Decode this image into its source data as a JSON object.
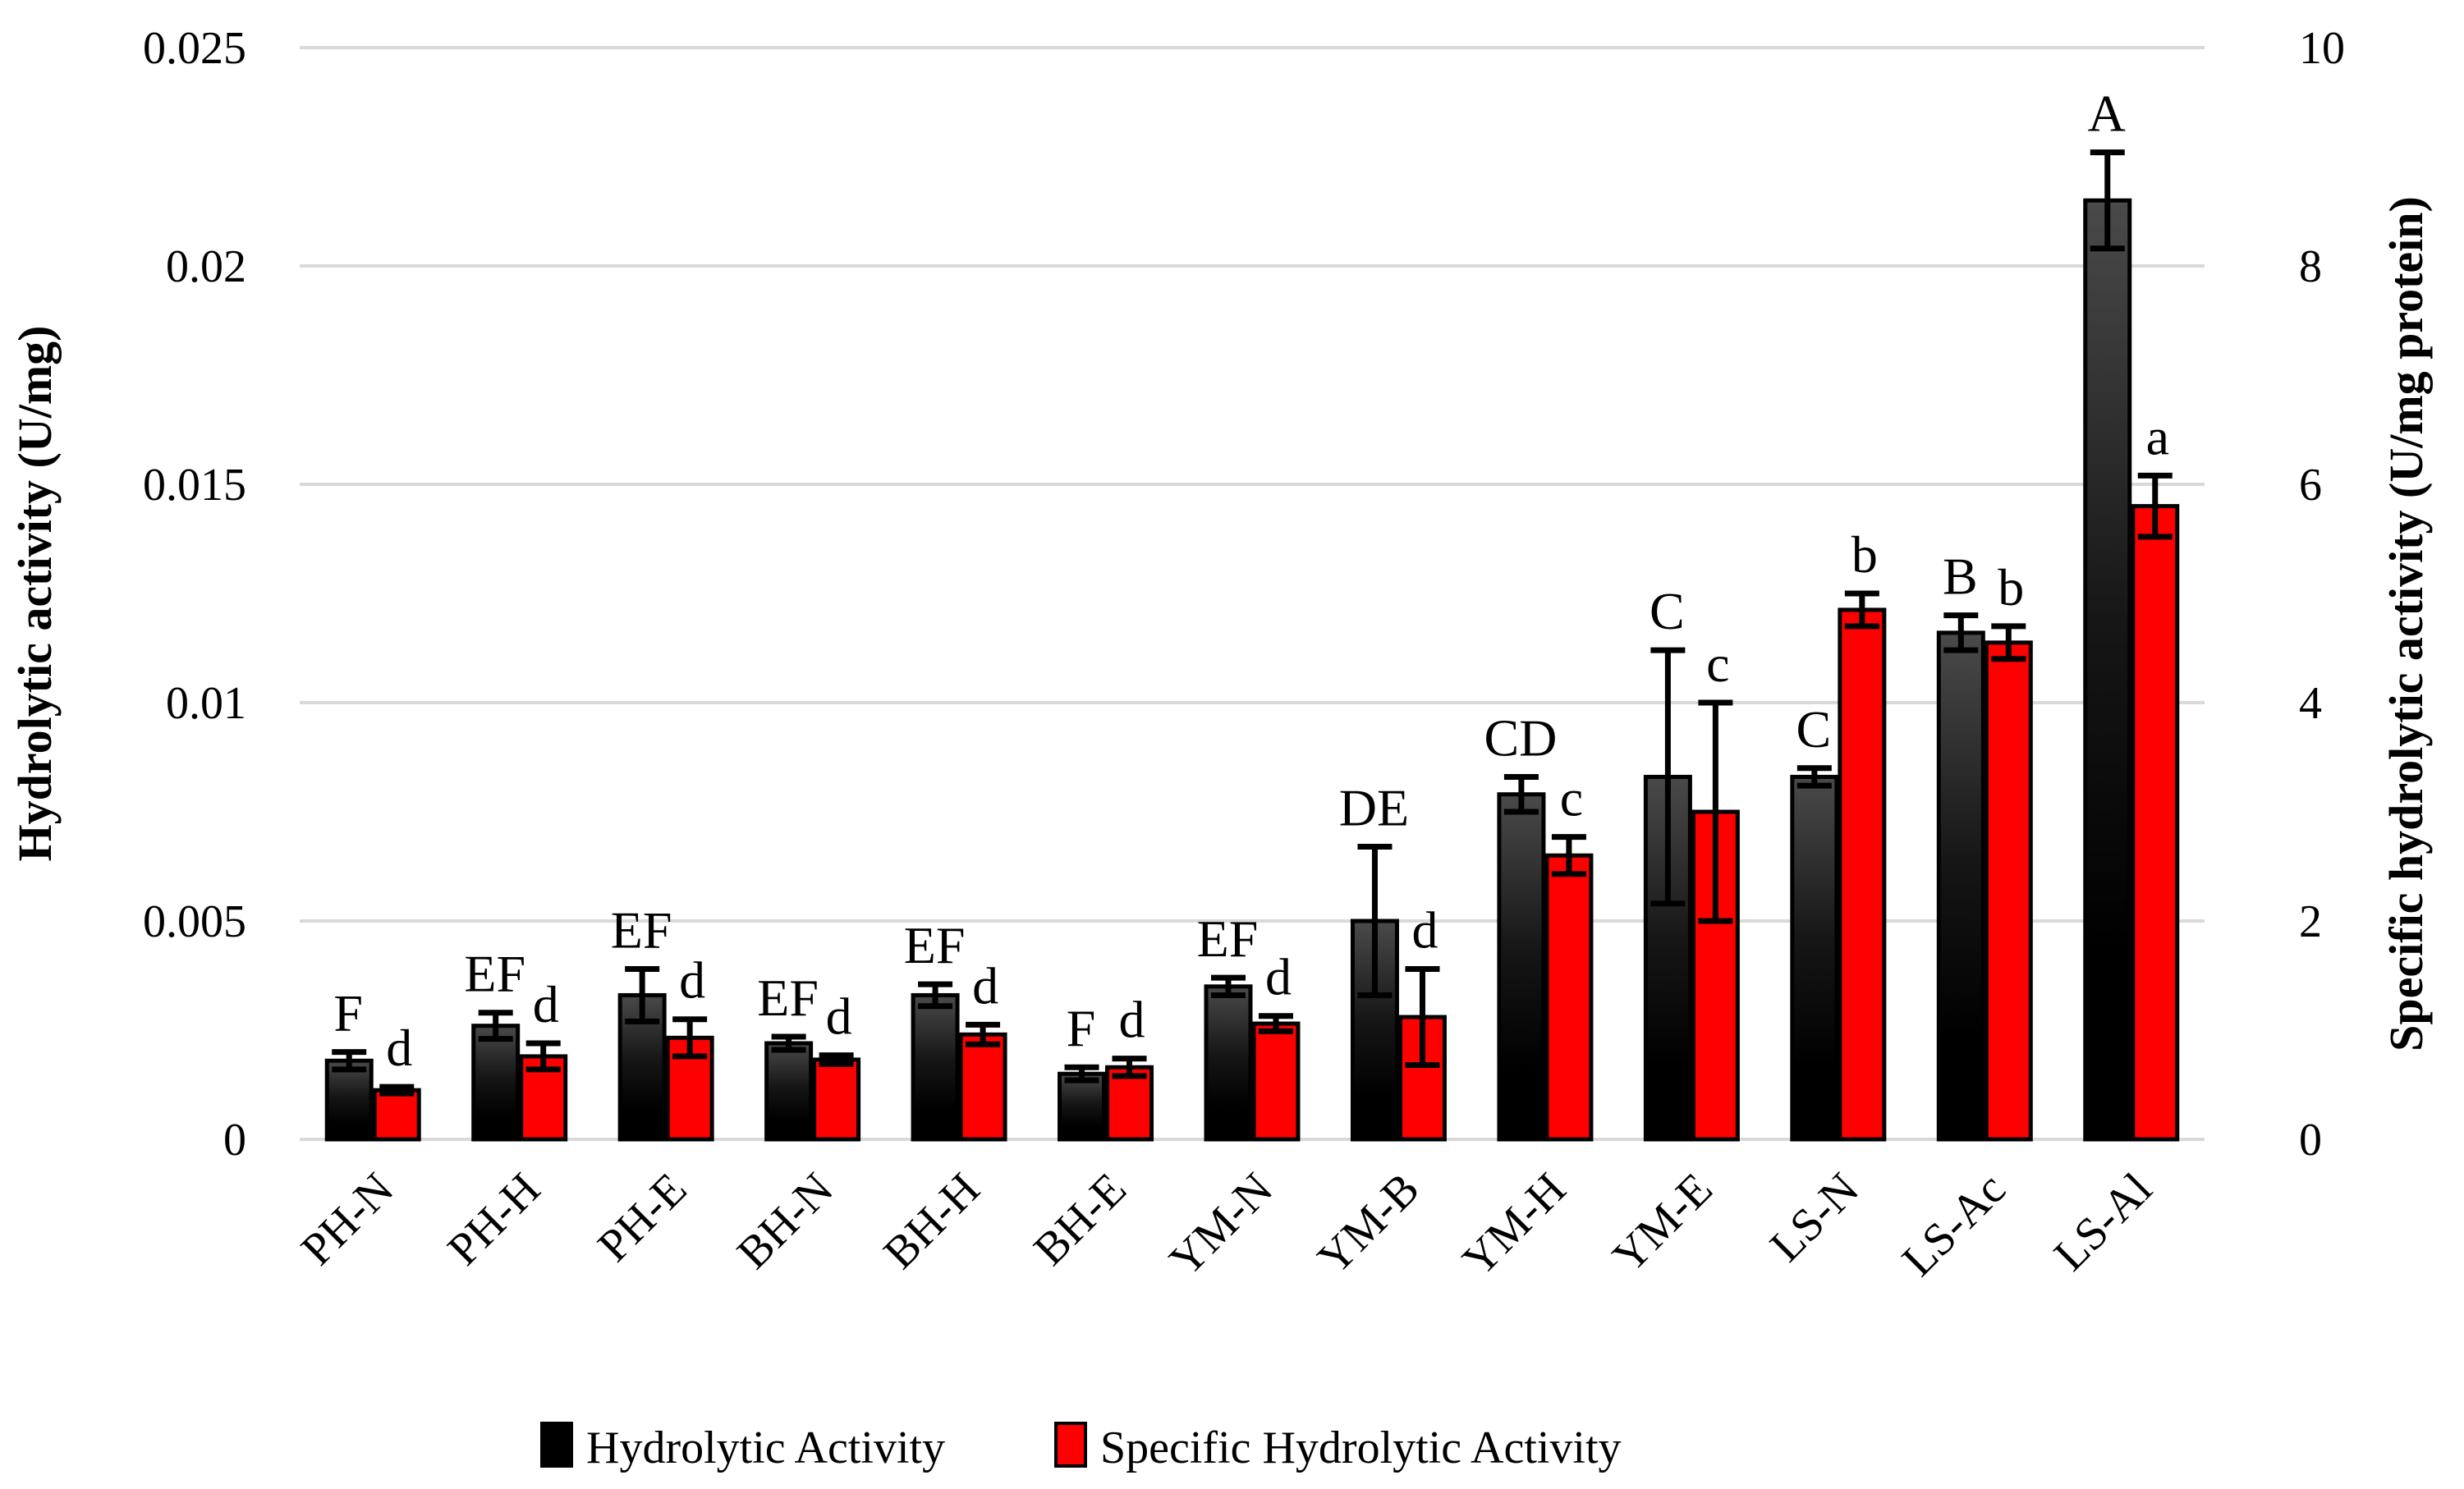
{
  "chart_data": {
    "type": "bar",
    "title": "",
    "categories": [
      "PH-N",
      "PH-H",
      "PH-E",
      "BH-N",
      "BH-H",
      "BH-E",
      "YM-N",
      "YM-B",
      "YM-H",
      "YM-E",
      "LS-N",
      "LS-Ac",
      "LS-Al"
    ],
    "series": [
      {
        "name": "Hydrolytic Activity",
        "axis": "left",
        "color": "#000000",
        "values": [
          0.0018,
          0.0026,
          0.0033,
          0.0022,
          0.0033,
          0.0015,
          0.0035,
          0.005,
          0.0079,
          0.0083,
          0.0083,
          0.0116,
          0.0215
        ],
        "errors": [
          0.0002,
          0.0003,
          0.0006,
          0.00015,
          0.00025,
          0.00015,
          0.0002,
          0.0017,
          0.0004,
          0.0029,
          0.0002,
          0.0004,
          0.0011
        ],
        "letters": [
          "F",
          "EF",
          "EF",
          "EF",
          "EF",
          "F",
          "EF",
          "DE",
          "CD",
          "C",
          "C",
          "B",
          "A"
        ]
      },
      {
        "name": "Specific Hydrolytic Activity",
        "axis": "right",
        "color": "#ff0000",
        "values": [
          0.45,
          0.76,
          0.93,
          0.73,
          0.96,
          0.66,
          1.06,
          1.12,
          2.6,
          3.0,
          4.85,
          4.55,
          5.8
        ],
        "errors": [
          0.03,
          0.12,
          0.17,
          0.04,
          0.09,
          0.08,
          0.07,
          0.44,
          0.17,
          1.0,
          0.15,
          0.15,
          0.28
        ],
        "letters": [
          "d",
          "d",
          "d",
          "d",
          "d",
          "d",
          "d",
          "d",
          "c",
          "c",
          "b",
          "b",
          "a"
        ]
      }
    ],
    "left_axis": {
      "label": "Hydrolytic activity (U/mg)",
      "min": 0,
      "max": 0.025,
      "ticks": [
        "0",
        "0.005",
        "0.01",
        "0.015",
        "0.02",
        "0.025"
      ]
    },
    "right_axis": {
      "label": "Specific hydrolytic activity (U/mg protein)",
      "min": 0,
      "max": 10,
      "ticks": [
        "0",
        "2",
        "4",
        "6",
        "8",
        "10"
      ]
    },
    "grid": true,
    "legend_position": "bottom"
  }
}
